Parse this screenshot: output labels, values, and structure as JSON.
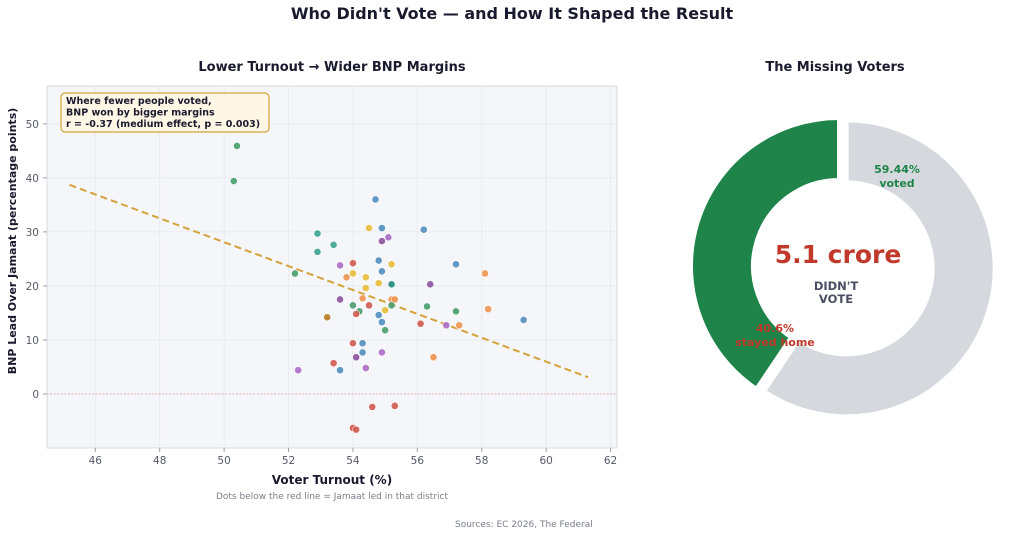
{
  "figure": {
    "title": "Who Didn't Vote — and How It Shaped the Result",
    "sources": "Sources: EC 2026, The Federal"
  },
  "chart_data": [
    {
      "type": "scatter",
      "title": "Lower Turnout → Wider BNP Margins",
      "xlabel": "Voter Turnout (%)",
      "ylabel": "BNP Lead Over Jamaat (percentage points)",
      "subtitle_note": "Dots below the red line = Jamaat led in that district",
      "xlim": [
        44.5,
        62.2
      ],
      "ylim": [
        -10,
        57
      ],
      "xticks": [
        46,
        48,
        50,
        52,
        54,
        56,
        58,
        60,
        62
      ],
      "yticks": [
        0,
        10,
        20,
        30,
        40,
        50
      ],
      "grid": true,
      "reference_line": {
        "y": 0,
        "color": "#e07a6e",
        "style": "dotted"
      },
      "trend_line": {
        "x": [
          45.2,
          61.3
        ],
        "y": [
          38.7,
          3.1
        ],
        "color": "#d4a23a",
        "style": "dashed"
      },
      "annotation": {
        "lines": [
          "Where fewer people voted,",
          "BNP won by bigger margins",
          "r = -0.37 (medium effect, p = 0.003)"
        ],
        "placement": "top-left"
      },
      "colors": {
        "green": "#4a9e6e",
        "teal": "#3aa58f",
        "darkteal": "#1f8a80",
        "blue": "#4f8fbf",
        "yellow": "#e6be3a",
        "orange": "#ee9550",
        "red": "#d05a4f",
        "purple": "#ac6cc6",
        "darkpurple": "#8c549e",
        "brown": "#b57a22"
      },
      "points": [
        {
          "x": 50.4,
          "y": 45.9,
          "c": "green"
        },
        {
          "x": 50.3,
          "y": 39.4,
          "c": "green"
        },
        {
          "x": 52.2,
          "y": 22.3,
          "c": "green"
        },
        {
          "x": 52.9,
          "y": 29.7,
          "c": "teal"
        },
        {
          "x": 52.9,
          "y": 26.3,
          "c": "teal"
        },
        {
          "x": 53.4,
          "y": 27.6,
          "c": "teal"
        },
        {
          "x": 54.7,
          "y": 36.0,
          "c": "blue"
        },
        {
          "x": 54.5,
          "y": 30.7,
          "c": "yellow"
        },
        {
          "x": 54.9,
          "y": 30.7,
          "c": "blue"
        },
        {
          "x": 55.1,
          "y": 29.0,
          "c": "purple"
        },
        {
          "x": 54.9,
          "y": 28.3,
          "c": "darkpurple"
        },
        {
          "x": 56.2,
          "y": 30.4,
          "c": "blue"
        },
        {
          "x": 57.2,
          "y": 24.0,
          "c": "blue"
        },
        {
          "x": 58.1,
          "y": 22.3,
          "c": "orange"
        },
        {
          "x": 54.8,
          "y": 24.7,
          "c": "blue"
        },
        {
          "x": 55.2,
          "y": 24.0,
          "c": "yellow"
        },
        {
          "x": 54.0,
          "y": 24.2,
          "c": "red"
        },
        {
          "x": 53.6,
          "y": 23.8,
          "c": "purple"
        },
        {
          "x": 54.9,
          "y": 22.7,
          "c": "blue"
        },
        {
          "x": 54.4,
          "y": 21.6,
          "c": "yellow"
        },
        {
          "x": 54.0,
          "y": 22.3,
          "c": "yellow"
        },
        {
          "x": 53.8,
          "y": 21.6,
          "c": "orange"
        },
        {
          "x": 54.8,
          "y": 20.5,
          "c": "yellow"
        },
        {
          "x": 54.4,
          "y": 19.6,
          "c": "yellow"
        },
        {
          "x": 55.2,
          "y": 20.3,
          "c": "darkteal"
        },
        {
          "x": 56.4,
          "y": 20.3,
          "c": "darkpurple"
        },
        {
          "x": 53.6,
          "y": 17.5,
          "c": "darkpurple"
        },
        {
          "x": 54.3,
          "y": 17.7,
          "c": "orange"
        },
        {
          "x": 55.2,
          "y": 17.5,
          "c": "orange"
        },
        {
          "x": 55.3,
          "y": 17.5,
          "c": "orange"
        },
        {
          "x": 55.2,
          "y": 16.4,
          "c": "green"
        },
        {
          "x": 54.5,
          "y": 16.4,
          "c": "red"
        },
        {
          "x": 54.0,
          "y": 16.4,
          "c": "green"
        },
        {
          "x": 56.3,
          "y": 16.2,
          "c": "green"
        },
        {
          "x": 58.2,
          "y": 15.7,
          "c": "orange"
        },
        {
          "x": 57.2,
          "y": 15.3,
          "c": "green"
        },
        {
          "x": 54.2,
          "y": 15.3,
          "c": "green"
        },
        {
          "x": 55.0,
          "y": 15.5,
          "c": "yellow"
        },
        {
          "x": 54.1,
          "y": 14.8,
          "c": "red"
        },
        {
          "x": 54.8,
          "y": 14.6,
          "c": "blue"
        },
        {
          "x": 53.2,
          "y": 14.2,
          "c": "brown"
        },
        {
          "x": 54.9,
          "y": 13.3,
          "c": "blue"
        },
        {
          "x": 59.3,
          "y": 13.7,
          "c": "blue"
        },
        {
          "x": 56.9,
          "y": 12.7,
          "c": "purple"
        },
        {
          "x": 56.1,
          "y": 13.0,
          "c": "red"
        },
        {
          "x": 57.3,
          "y": 12.7,
          "c": "orange"
        },
        {
          "x": 55.0,
          "y": 11.8,
          "c": "green"
        },
        {
          "x": 54.0,
          "y": 9.4,
          "c": "red"
        },
        {
          "x": 54.3,
          "y": 9.4,
          "c": "blue"
        },
        {
          "x": 54.3,
          "y": 7.7,
          "c": "blue"
        },
        {
          "x": 54.9,
          "y": 7.7,
          "c": "purple"
        },
        {
          "x": 54.1,
          "y": 6.8,
          "c": "darkpurple"
        },
        {
          "x": 56.5,
          "y": 6.8,
          "c": "orange"
        },
        {
          "x": 53.4,
          "y": 5.7,
          "c": "red"
        },
        {
          "x": 54.4,
          "y": 4.8,
          "c": "purple"
        },
        {
          "x": 52.3,
          "y": 4.4,
          "c": "purple"
        },
        {
          "x": 53.6,
          "y": 4.4,
          "c": "blue"
        },
        {
          "x": 54.6,
          "y": -2.4,
          "c": "red"
        },
        {
          "x": 55.3,
          "y": -2.2,
          "c": "red"
        },
        {
          "x": 54.0,
          "y": -6.3,
          "c": "red"
        },
        {
          "x": 54.1,
          "y": -6.6,
          "c": "red"
        }
      ]
    },
    {
      "type": "pie",
      "donut": true,
      "title": "The Missing Voters",
      "slices": [
        {
          "label": "stayed home",
          "value": 40.6,
          "display": "40.6%",
          "color": "#1f8449",
          "label_color": "#c0392b"
        },
        {
          "label": "voted",
          "value": 59.44,
          "display": "59.44%",
          "color": "#d5d8dd",
          "label_color": "#1f8449"
        }
      ],
      "center_value": "5.1 crore",
      "center_value_color": "#c0392b",
      "center_label": [
        "DIDN'T",
        "VOTE"
      ],
      "center_label_color": "#4a4e63"
    }
  ]
}
